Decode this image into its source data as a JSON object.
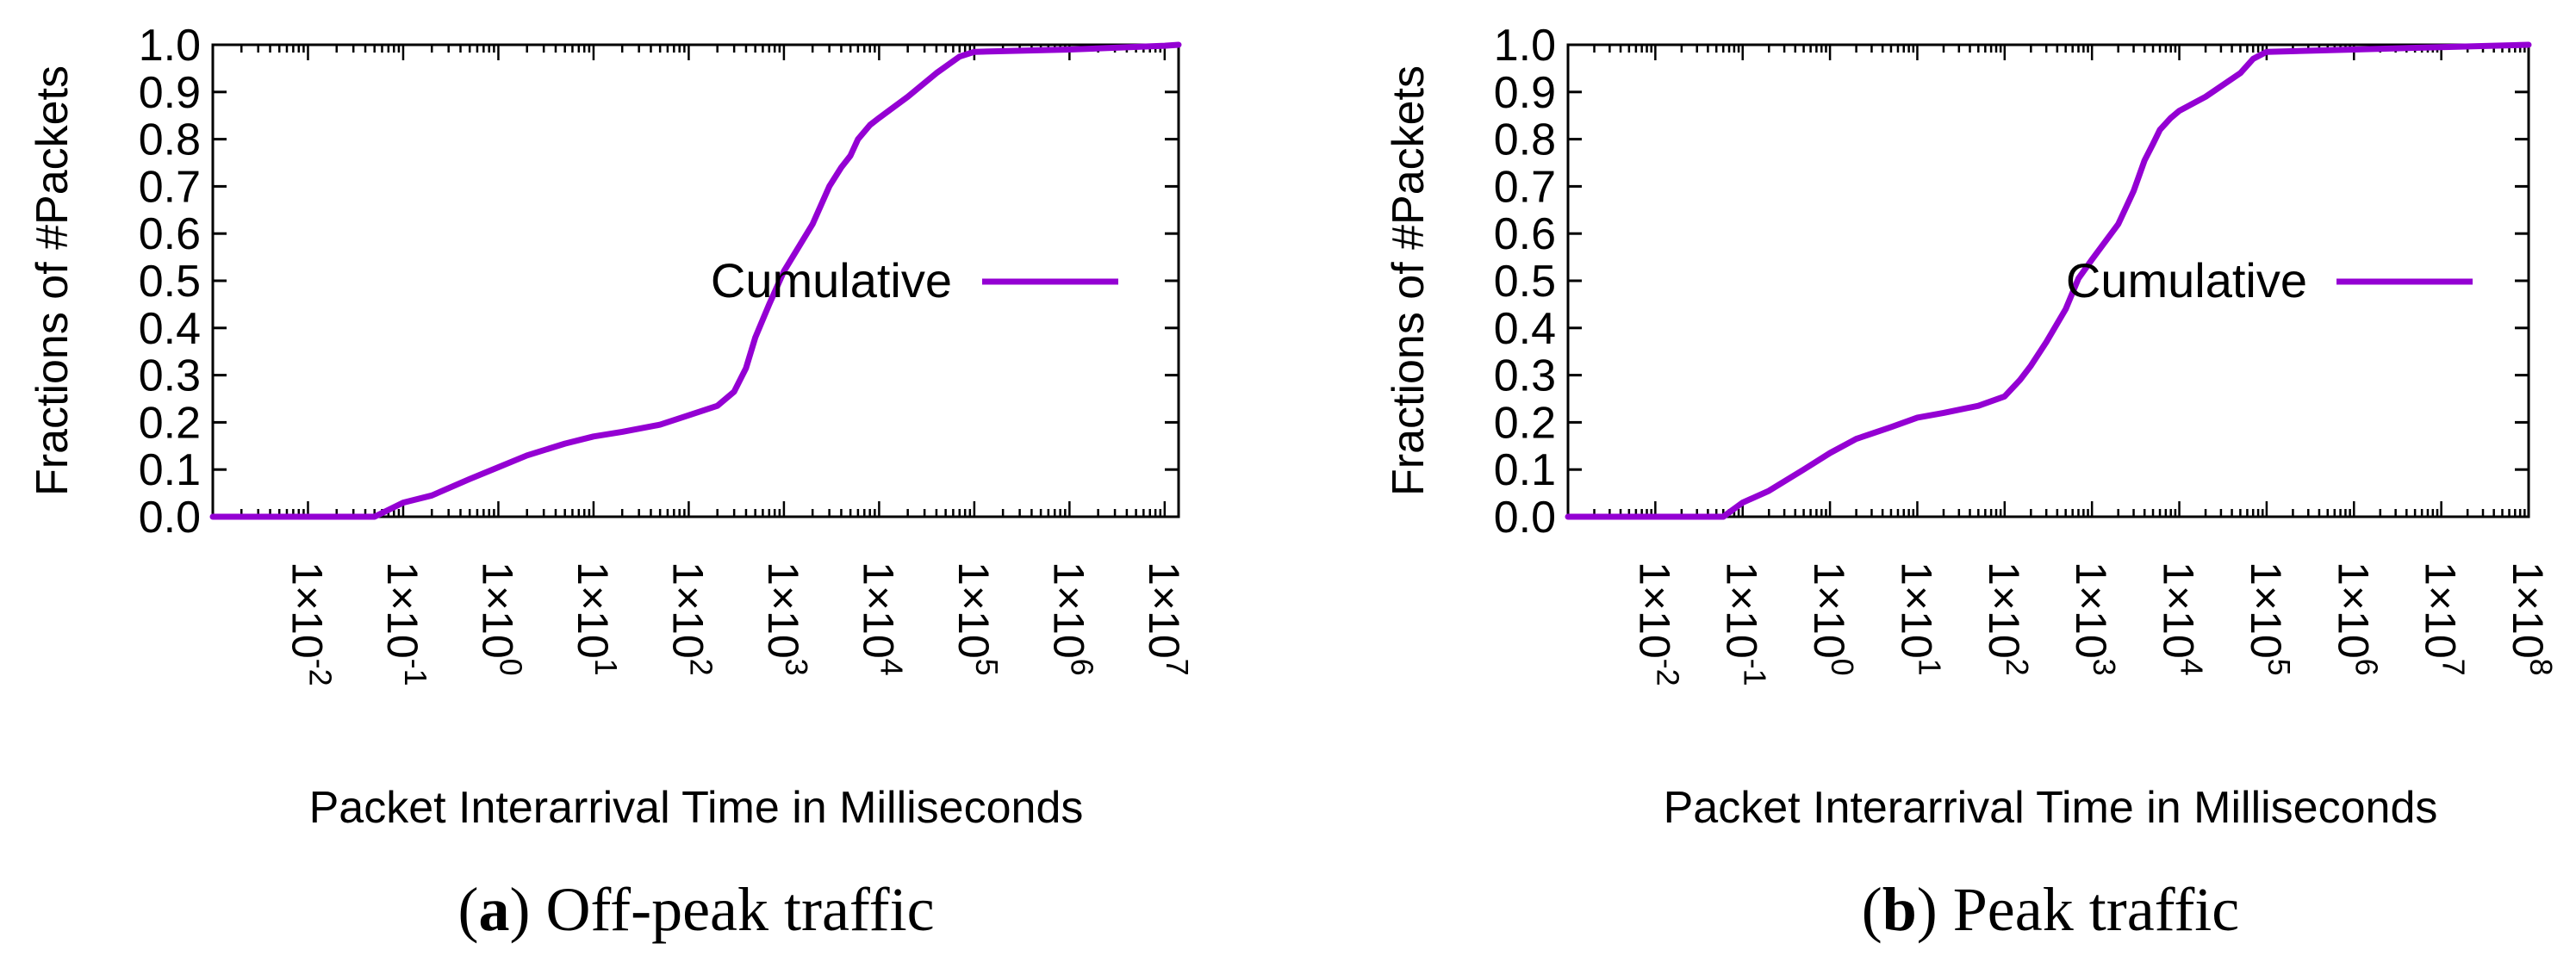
{
  "chart_data": [
    {
      "type": "line",
      "panel_label": "(a)",
      "caption": "Off-peak traffic",
      "title": "",
      "xlabel": "Packet Interarrival Time in Milliseconds",
      "ylabel": "Fractions of #Packets",
      "xscale": "log",
      "xlim": [
        0.001,
        14000000
      ],
      "ylim": [
        0,
        1
      ],
      "yticks": [
        "0.0",
        "0.1",
        "0.2",
        "0.3",
        "0.4",
        "0.5",
        "0.6",
        "0.7",
        "0.8",
        "0.9",
        "1.0"
      ],
      "xticks": [
        {
          "value": 0.01,
          "mantissa": "1×10",
          "exp": "-2"
        },
        {
          "value": 0.1,
          "mantissa": "1×10",
          "exp": "-1"
        },
        {
          "value": 1,
          "mantissa": "1×10",
          "exp": "0"
        },
        {
          "value": 10,
          "mantissa": "1×10",
          "exp": "1"
        },
        {
          "value": 100,
          "mantissa": "1×10",
          "exp": "2"
        },
        {
          "value": 1000,
          "mantissa": "1×10",
          "exp": "3"
        },
        {
          "value": 10000,
          "mantissa": "1×10",
          "exp": "4"
        },
        {
          "value": 100000,
          "mantissa": "1×10",
          "exp": "5"
        },
        {
          "value": 1000000,
          "mantissa": "1×10",
          "exp": "6"
        },
        {
          "value": 10000000,
          "mantissa": "1×10",
          "exp": "7"
        }
      ],
      "legend": "top-right",
      "series": [
        {
          "name": "Cumulative",
          "color": "#9400d3",
          "x": [
            0.001,
            0.005,
            0.03,
            0.05,
            0.1,
            0.2,
            0.5,
            1,
            2,
            5,
            10,
            20,
            50,
            100,
            200,
            300,
            400,
            500,
            700,
            1000,
            2000,
            3000,
            4000,
            5000,
            6000,
            8000,
            10000,
            20000,
            40000,
            70000,
            100000,
            1000000,
            10000000,
            14000000
          ],
          "y": [
            0.0,
            0.0,
            0.0,
            0.0,
            0.03,
            0.045,
            0.08,
            0.105,
            0.13,
            0.155,
            0.17,
            0.18,
            0.195,
            0.215,
            0.235,
            0.265,
            0.315,
            0.38,
            0.45,
            0.52,
            0.62,
            0.7,
            0.74,
            0.765,
            0.8,
            0.83,
            0.845,
            0.89,
            0.94,
            0.975,
            0.985,
            0.99,
            0.998,
            1.0
          ]
        }
      ]
    },
    {
      "type": "line",
      "panel_label": "(b)",
      "caption": "Peak traffic",
      "title": "",
      "xlabel": "Packet Interarrival Time in Milliseconds",
      "ylabel": "Fractions of #Packets",
      "xscale": "log",
      "xlim": [
        0.001,
        100000000
      ],
      "ylim": [
        0,
        1
      ],
      "yticks": [
        "0.0",
        "0.1",
        "0.2",
        "0.3",
        "0.4",
        "0.5",
        "0.6",
        "0.7",
        "0.8",
        "0.9",
        "1.0"
      ],
      "xticks": [
        {
          "value": 0.01,
          "mantissa": "1×10",
          "exp": "-2"
        },
        {
          "value": 0.1,
          "mantissa": "1×10",
          "exp": "-1"
        },
        {
          "value": 1,
          "mantissa": "1×10",
          "exp": "0"
        },
        {
          "value": 10,
          "mantissa": "1×10",
          "exp": "1"
        },
        {
          "value": 100,
          "mantissa": "1×10",
          "exp": "2"
        },
        {
          "value": 1000,
          "mantissa": "1×10",
          "exp": "3"
        },
        {
          "value": 10000,
          "mantissa": "1×10",
          "exp": "4"
        },
        {
          "value": 100000,
          "mantissa": "1×10",
          "exp": "5"
        },
        {
          "value": 1000000,
          "mantissa": "1×10",
          "exp": "6"
        },
        {
          "value": 10000000,
          "mantissa": "1×10",
          "exp": "7"
        },
        {
          "value": 100000000,
          "mantissa": "1×10",
          "exp": "8"
        }
      ],
      "legend": "top-right",
      "series": [
        {
          "name": "Cumulative",
          "color": "#9400d3",
          "x": [
            0.001,
            0.01,
            0.04,
            0.06,
            0.1,
            0.2,
            0.5,
            1,
            2,
            5,
            10,
            20,
            50,
            100,
            150,
            200,
            300,
            500,
            700,
            1000,
            2000,
            3000,
            4000,
            5000,
            6000,
            8000,
            10000,
            20000,
            50000,
            70000,
            100000,
            1000000,
            10000000,
            100000000
          ],
          "y": [
            0.0,
            0.0,
            0.0,
            0.0,
            0.03,
            0.055,
            0.1,
            0.135,
            0.165,
            0.19,
            0.21,
            0.22,
            0.235,
            0.255,
            0.29,
            0.32,
            0.37,
            0.44,
            0.505,
            0.545,
            0.62,
            0.69,
            0.755,
            0.79,
            0.82,
            0.845,
            0.86,
            0.89,
            0.94,
            0.97,
            0.985,
            0.99,
            0.995,
            1.0
          ]
        }
      ]
    }
  ]
}
